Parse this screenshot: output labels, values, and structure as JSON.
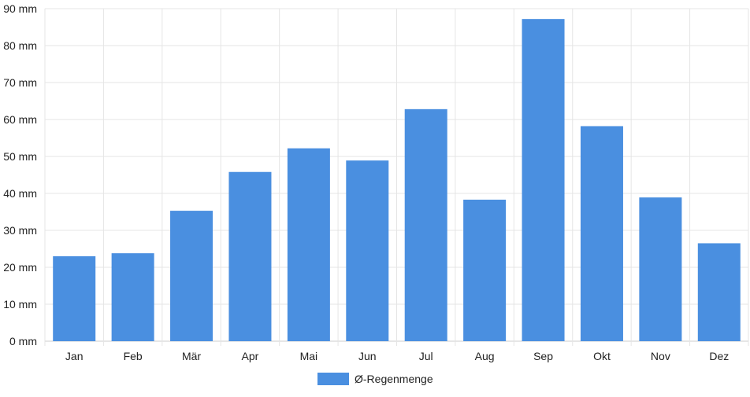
{
  "chart_data": {
    "type": "bar",
    "categories": [
      "Jan",
      "Feb",
      "Mär",
      "Apr",
      "Mai",
      "Jun",
      "Jul",
      "Aug",
      "Sep",
      "Okt",
      "Nov",
      "Dez"
    ],
    "series": [
      {
        "name": "Ø-Regenmenge",
        "color": "#4a8fe0",
        "values": [
          23,
          23.8,
          35.3,
          45.8,
          52.2,
          48.9,
          62.8,
          38.3,
          87.2,
          58.2,
          38.9,
          26.5
        ]
      }
    ],
    "title": "",
    "xlabel": "",
    "ylabel": "",
    "ylim": [
      0,
      90
    ],
    "y_ticks": [
      {
        "value": 0,
        "label": "0 mm"
      },
      {
        "value": 10,
        "label": "10 mm"
      },
      {
        "value": 20,
        "label": "20 mm"
      },
      {
        "value": 30,
        "label": "30 mm"
      },
      {
        "value": 40,
        "label": "40 mm"
      },
      {
        "value": 50,
        "label": "50 mm"
      },
      {
        "value": 60,
        "label": "60 mm"
      },
      {
        "value": 70,
        "label": "70 mm"
      },
      {
        "value": 80,
        "label": "80 mm"
      },
      {
        "value": 90,
        "label": "90 mm"
      }
    ],
    "grid": true,
    "legend_position": "bottom-center",
    "colors": {
      "grid": "#e5e5e5",
      "axis": "#cccccc"
    }
  }
}
